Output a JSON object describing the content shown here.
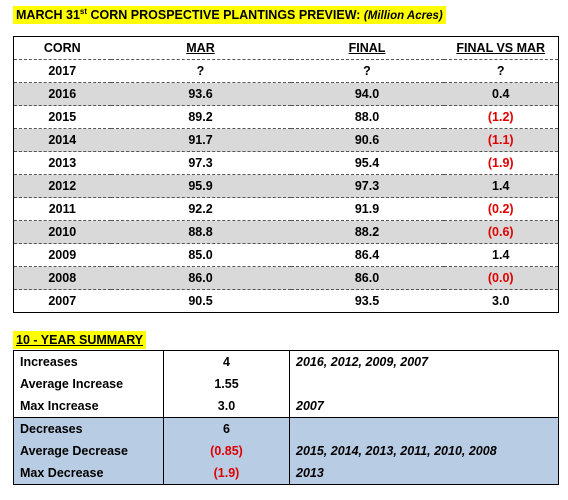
{
  "title": {
    "prefix": "MARCH 31",
    "superscript": "st",
    "main": " CORN PROSPECTIVE PLANTINGS PREVIEW: ",
    "unit": "(Million Acres)"
  },
  "table": {
    "headers": [
      "CORN",
      "MAR",
      "FINAL",
      "FINAL VS MAR"
    ],
    "rows": [
      {
        "year": "2017",
        "mar": "?",
        "final": "?",
        "diff": "?"
      },
      {
        "year": "2016",
        "mar": "93.6",
        "final": "94.0",
        "diff": "0.4"
      },
      {
        "year": "2015",
        "mar": "89.2",
        "final": "88.0",
        "diff": "(1.2)"
      },
      {
        "year": "2014",
        "mar": "91.7",
        "final": "90.6",
        "diff": "(1.1)"
      },
      {
        "year": "2013",
        "mar": "97.3",
        "final": "95.4",
        "diff": "(1.9)"
      },
      {
        "year": "2012",
        "mar": "95.9",
        "final": "97.3",
        "diff": "1.4"
      },
      {
        "year": "2011",
        "mar": "92.2",
        "final": "91.9",
        "diff": "(0.2)"
      },
      {
        "year": "2010",
        "mar": "88.8",
        "final": "88.2",
        "diff": "(0.6)"
      },
      {
        "year": "2009",
        "mar": "85.0",
        "final": "86.4",
        "diff": "1.4"
      },
      {
        "year": "2008",
        "mar": "86.0",
        "final": "86.0",
        "diff": "(0.0)"
      },
      {
        "year": "2007",
        "mar": "90.5",
        "final": "93.5",
        "diff": "3.0"
      }
    ]
  },
  "summary": {
    "title": "10 - YEAR SUMMARY",
    "increases_label": "Increases",
    "increases_value": "4",
    "increases_years": "2016, 2012, 2009, 2007",
    "avg_increase_label": "Average Increase",
    "avg_increase_value": "1.55",
    "max_increase_label": "Max Increase",
    "max_increase_value": "3.0",
    "max_increase_year": "2007",
    "decreases_label": "Decreases",
    "decreases_value": "6",
    "avg_decrease_label": "Average Decrease",
    "avg_decrease_value": "(0.85)",
    "avg_decrease_years": "2015, 2014, 2013, 2011, 2010, 2008",
    "max_decrease_label": "Max Decrease",
    "max_decrease_value": "(1.9)",
    "max_decrease_year": "2013"
  },
  "colors": {
    "highlight": "#ffff00",
    "row_shade": "#d9d9d9",
    "decrease_band": "#b8cce4",
    "negative": "#e00000"
  }
}
